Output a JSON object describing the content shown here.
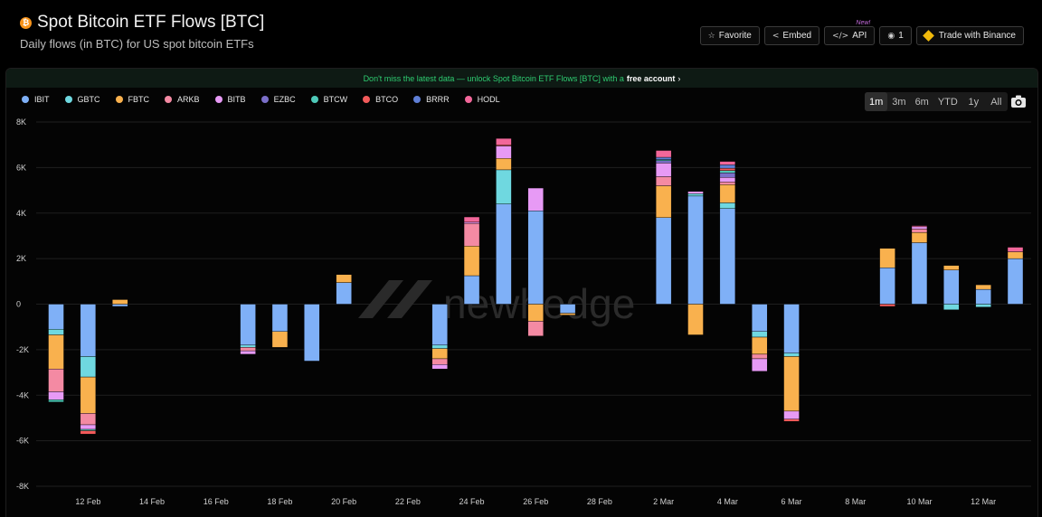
{
  "header": {
    "title": "Spot Bitcoin ETF Flows [BTC]",
    "subtitle": "Daily flows (in BTC) for US spot bitcoin ETFs",
    "btc_icon": "bitcoin-icon"
  },
  "toolbar": {
    "favorite_label": "Favorite",
    "embed_label": "Embed",
    "api_label": "API",
    "api_badge": "New!",
    "watchers_count": "1",
    "trade_label": "Trade with Binance"
  },
  "banner": {
    "text": "Don't miss the latest data — unlock Spot Bitcoin ETF Flows [BTC] with a",
    "link": "free account",
    "chevron": "›"
  },
  "ranges": [
    "1m",
    "3m",
    "6m",
    "YTD",
    "1y",
    "All"
  ],
  "active_range": "1m",
  "watermark": "newhedge",
  "colors": {
    "IBIT": "#7fb0f7",
    "GBTC": "#6fd8e0",
    "FBTC": "#f9b14e",
    "ARKB": "#f48aa3",
    "BITB": "#e79af5",
    "EZBC": "#7b6fc9",
    "BTCW": "#4ec9b8",
    "BTCO": "#f25a5a",
    "BRRR": "#5f7fd6",
    "HODL": "#f2679a"
  },
  "chart_data": {
    "type": "bar",
    "stacked": true,
    "ylim": [
      -8000,
      8000
    ],
    "yticks": [
      8000,
      6000,
      4000,
      2000,
      0,
      -2000,
      -4000,
      -6000,
      -8000
    ],
    "ytick_labels": [
      "8K",
      "6K",
      "4K",
      "2K",
      "0",
      "-2K",
      "-4K",
      "-6K",
      "-8K"
    ],
    "xtick_labels": [
      "12 Feb",
      "14 Feb",
      "16 Feb",
      "18 Feb",
      "20 Feb",
      "22 Feb",
      "24 Feb",
      "26 Feb",
      "28 Feb",
      "2 Mar",
      "4 Mar",
      "6 Mar",
      "8 Mar",
      "10 Mar",
      "12 Mar"
    ],
    "categories": [
      "11 Feb",
      "12 Feb",
      "13 Feb",
      "14 Feb",
      "15 Feb",
      "16 Feb",
      "17 Feb",
      "18 Feb",
      "19 Feb",
      "20 Feb",
      "21 Feb",
      "22 Feb",
      "23 Feb",
      "24 Feb",
      "25 Feb",
      "26 Feb",
      "27 Feb",
      "28 Feb",
      "1 Mar",
      "2 Mar",
      "3 Mar",
      "4 Mar",
      "5 Mar",
      "6 Mar",
      "7 Mar",
      "8 Mar",
      "9 Mar",
      "10 Mar",
      "11 Mar",
      "12 Mar",
      "13 Mar"
    ],
    "series": [
      {
        "name": "IBIT",
        "values": [
          -1100,
          -2300,
          -100,
          0,
          0,
          0,
          -1800,
          -1200,
          -2500,
          950,
          0,
          0,
          -1800,
          1250,
          4400,
          4100,
          -400,
          0,
          0,
          3800,
          4750,
          4200,
          -1200,
          -2150,
          0,
          0,
          1600,
          2700,
          1500,
          650,
          2000
        ]
      },
      {
        "name": "GBTC",
        "values": [
          -250,
          -900,
          0,
          0,
          0,
          0,
          -100,
          0,
          0,
          0,
          0,
          0,
          -150,
          0,
          1500,
          0,
          0,
          0,
          0,
          0,
          100,
          250,
          -250,
          -150,
          0,
          0,
          0,
          0,
          -250,
          -130,
          0
        ]
      },
      {
        "name": "FBTC",
        "values": [
          -1500,
          -1600,
          200,
          0,
          0,
          0,
          0,
          -700,
          0,
          350,
          0,
          0,
          -450,
          1300,
          500,
          -750,
          -80,
          0,
          0,
          1400,
          -1350,
          800,
          -750,
          -2400,
          0,
          0,
          850,
          450,
          200,
          200,
          300
        ]
      },
      {
        "name": "ARKB",
        "values": [
          -1000,
          -500,
          0,
          0,
          0,
          0,
          -150,
          0,
          0,
          0,
          0,
          0,
          -250,
          1000,
          0,
          -650,
          0,
          0,
          0,
          400,
          0,
          120,
          -200,
          0,
          0,
          0,
          0,
          150,
          0,
          0,
          0
        ]
      },
      {
        "name": "BITB",
        "values": [
          -350,
          -200,
          0,
          0,
          0,
          0,
          -150,
          0,
          0,
          0,
          0,
          0,
          -200,
          50,
          550,
          1000,
          0,
          0,
          0,
          600,
          100,
          200,
          -550,
          -350,
          0,
          0,
          0,
          100,
          0,
          0,
          0
        ]
      },
      {
        "name": "EZBC",
        "values": [
          0,
          0,
          0,
          0,
          0,
          0,
          0,
          0,
          0,
          0,
          0,
          0,
          0,
          0,
          0,
          0,
          0,
          0,
          0,
          100,
          0,
          200,
          0,
          0,
          0,
          0,
          0,
          0,
          0,
          0,
          0
        ]
      },
      {
        "name": "BTCW",
        "values": [
          -100,
          -60,
          0,
          0,
          0,
          0,
          0,
          0,
          0,
          0,
          0,
          0,
          0,
          0,
          0,
          0,
          0,
          0,
          0,
          50,
          0,
          100,
          0,
          0,
          0,
          0,
          0,
          0,
          0,
          0,
          0
        ]
      },
      {
        "name": "BTCO",
        "values": [
          0,
          -150,
          0,
          0,
          0,
          0,
          0,
          0,
          0,
          0,
          0,
          0,
          0,
          0,
          50,
          0,
          0,
          0,
          0,
          0,
          0,
          100,
          0,
          -100,
          0,
          0,
          -100,
          0,
          0,
          0,
          0
        ]
      },
      {
        "name": "BRRR",
        "values": [
          0,
          0,
          0,
          0,
          0,
          0,
          0,
          0,
          0,
          0,
          0,
          0,
          0,
          0,
          0,
          0,
          0,
          0,
          0,
          100,
          0,
          150,
          0,
          0,
          0,
          0,
          0,
          0,
          0,
          0,
          0
        ]
      },
      {
        "name": "HODL",
        "values": [
          0,
          0,
          0,
          0,
          0,
          0,
          0,
          0,
          0,
          0,
          0,
          0,
          0,
          230,
          280,
          0,
          0,
          0,
          0,
          300,
          0,
          150,
          0,
          0,
          0,
          0,
          0,
          50,
          0,
          0,
          200
        ]
      }
    ]
  }
}
